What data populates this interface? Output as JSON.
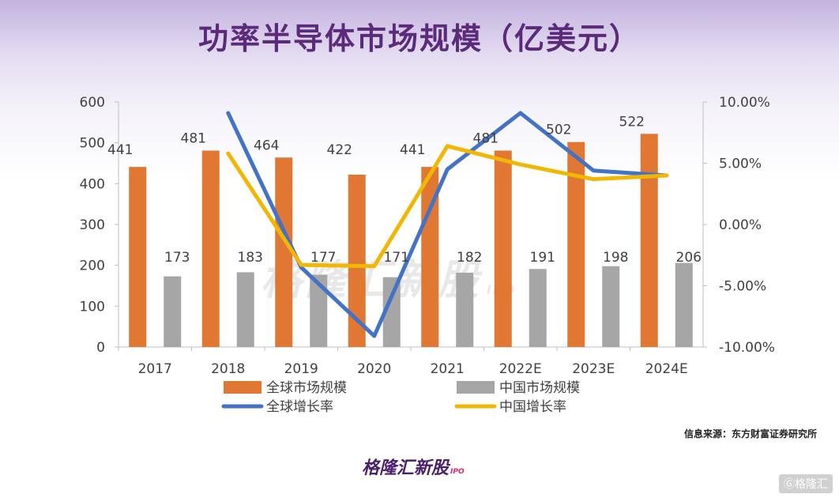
{
  "page": {
    "title": "功率半导体市场规模（亿美元）",
    "source": "信息来源：东方财富证券研究所",
    "watermark": "格隆汇新股",
    "watermark_sub": "IPO",
    "brand": "格隆汇新股",
    "brand_sub": "IPO",
    "corner_mark": "Ⓖ格隆汇"
  },
  "colors": {
    "global_bar": "#e07833",
    "china_bar": "#a6a6a6",
    "global_growth": "#4472c4",
    "china_growth": "#f2b705",
    "title": "#5b2a7a"
  },
  "chart_data": {
    "type": "bar",
    "title": "功率半导体市场规模（亿美元）",
    "categories": [
      "2017",
      "2018",
      "2019",
      "2020",
      "2021",
      "2022E",
      "2023E",
      "2024E"
    ],
    "y_left": {
      "min": 0,
      "max": 600,
      "ticks": [
        0,
        100,
        200,
        300,
        400,
        500,
        600
      ]
    },
    "y_right": {
      "min": -10,
      "max": 10,
      "ticks": [
        -10,
        -5,
        0,
        5,
        10
      ],
      "tick_labels": [
        "-10.00%",
        "-5.00%",
        "0.00%",
        "5.00%",
        "10.00%"
      ]
    },
    "series": [
      {
        "name": "全球市场规模",
        "type": "bar",
        "axis": "left",
        "values": [
          441,
          481,
          464,
          422,
          441,
          481,
          502,
          522
        ]
      },
      {
        "name": "中国市场规模",
        "type": "bar",
        "axis": "left",
        "values": [
          173,
          183,
          177,
          171,
          182,
          191,
          198,
          206
        ]
      },
      {
        "name": "全球增长率",
        "type": "line",
        "axis": "right",
        "values": [
          null,
          9.1,
          -3.5,
          -9.1,
          4.5,
          9.1,
          4.4,
          4.0
        ]
      },
      {
        "name": "中国增长率",
        "type": "line",
        "axis": "right",
        "values": [
          null,
          5.8,
          -3.3,
          -3.4,
          6.4,
          4.9,
          3.7,
          4.0
        ]
      }
    ],
    "legend": [
      "全球市场规模",
      "中国市场规模",
      "全球增长率",
      "中国增长率"
    ],
    "legend_position": "bottom",
    "grid": false
  }
}
